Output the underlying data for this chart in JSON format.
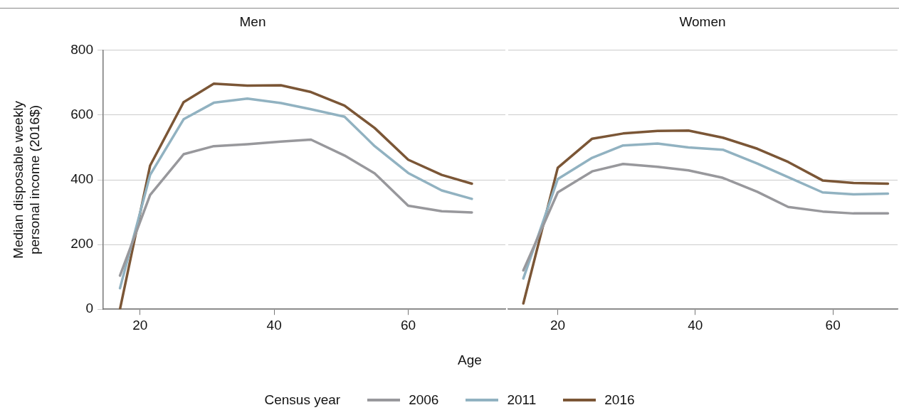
{
  "chart_data": [
    {
      "type": "line",
      "title": "Men",
      "xlabel": "Age",
      "ylabel": "Median disposable weekly personal income (2016$)",
      "legend_title": "Census year",
      "legend": "bottom",
      "grid": "y",
      "xlim": [
        14.5,
        74.5
      ],
      "xticks": [
        20,
        40,
        60
      ],
      "ylim": [
        0,
        800
      ],
      "yticks": [
        0,
        200,
        400,
        600,
        800
      ],
      "x": [
        17,
        21.5,
        26.5,
        31,
        36,
        41,
        45.5,
        50.5,
        55,
        60,
        65,
        69.5
      ],
      "series": [
        {
          "name": "2006",
          "color": "#98989c",
          "values": [
            104,
            353,
            479,
            504,
            510,
            518,
            524,
            475,
            420,
            320,
            303,
            299
          ]
        },
        {
          "name": "2011",
          "color": "#91b2c1",
          "values": [
            65,
            415,
            587,
            638,
            651,
            637,
            618,
            595,
            504,
            421,
            367,
            341
          ]
        },
        {
          "name": "2016",
          "color": "#7b5636",
          "values": [
            0,
            444,
            640,
            697,
            691,
            692,
            671,
            629,
            560,
            462,
            415,
            388
          ]
        }
      ]
    },
    {
      "type": "line",
      "title": "Women",
      "grid": "y",
      "tick_labels": "x",
      "xlim": [
        12.8,
        69.4
      ],
      "xticks": [
        20,
        40,
        60
      ],
      "ylim": [
        0,
        800
      ],
      "yticks": [
        0,
        200,
        400,
        600,
        800
      ],
      "x": [
        15,
        20,
        25,
        29.5,
        34.5,
        39,
        44,
        49,
        53.5,
        58.5,
        63,
        68
      ],
      "series": [
        {
          "name": "2006",
          "color": "#98989c",
          "values": [
            120,
            361,
            426,
            449,
            440,
            429,
            406,
            363,
            316,
            302,
            296,
            296
          ]
        },
        {
          "name": "2011",
          "color": "#91b2c1",
          "values": [
            95,
            402,
            468,
            506,
            512,
            500,
            493,
            450,
            408,
            361,
            355,
            357
          ]
        },
        {
          "name": "2016",
          "color": "#7b5636",
          "values": [
            18,
            437,
            527,
            543,
            551,
            552,
            530,
            496,
            455,
            398,
            390,
            388
          ]
        }
      ]
    }
  ]
}
